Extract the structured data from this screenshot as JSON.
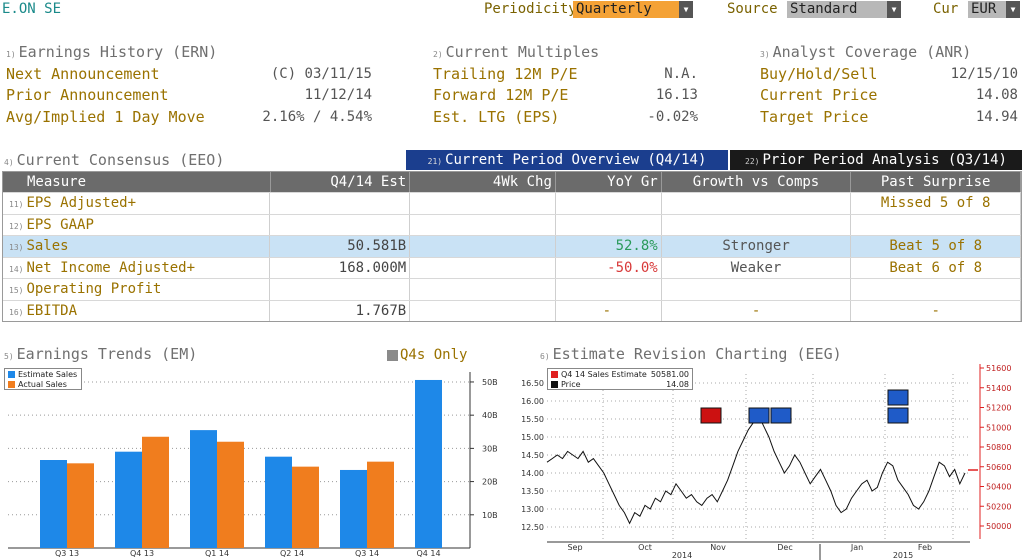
{
  "header": {
    "ticker": "E.ON SE",
    "periodicity_label": "Periodicity",
    "periodicity_value": "Quarterly",
    "source_label": "Source",
    "source_value": "Standard",
    "cur_label": "Cur",
    "cur_value": "EUR"
  },
  "earnings_history": {
    "num": "1)",
    "title": "Earnings History (ERN)",
    "rows": [
      {
        "label": "Next Announcement",
        "value": "(C)  03/11/15"
      },
      {
        "label": "Prior Announcement",
        "value": "11/12/14"
      },
      {
        "label": "Avg/Implied 1 Day Move",
        "value": "2.16% / 4.54%"
      }
    ]
  },
  "current_multiples": {
    "num": "2)",
    "title": "Current Multiples",
    "rows": [
      {
        "label": "Trailing 12M P/E",
        "value": "N.A."
      },
      {
        "label": "Forward 12M P/E",
        "value": "16.13"
      },
      {
        "label": "Est. LTG (EPS)",
        "value": "-0.02%"
      }
    ]
  },
  "analyst_coverage": {
    "num": "3)",
    "title": "Analyst Coverage (ANR)",
    "rows": [
      {
        "label": "Buy/Hold/Sell",
        "value": "12/15/10"
      },
      {
        "label": "Current Price",
        "value": "14.08"
      },
      {
        "label": "Target Price",
        "value": "14.94"
      }
    ]
  },
  "consensus": {
    "num": "4)",
    "title": "Current Consensus (EEO)",
    "tab1_num": "21)",
    "tab1": "Current Period Overview (Q4/14)",
    "tab2_num": "22)",
    "tab2": "Prior Period Analysis (Q3/14)",
    "columns": [
      "Measure",
      "Q4/14 Est",
      "4Wk Chg",
      "YoY Gr",
      "Growth vs Comps",
      "Past Surprise"
    ],
    "rows": [
      {
        "num": "11)",
        "measure": "EPS Adjusted+",
        "est": "",
        "chg": "",
        "yoy": "",
        "comps": "",
        "surprise": "Missed 5 of 8"
      },
      {
        "num": "12)",
        "measure": "EPS GAAP",
        "est": "",
        "chg": "",
        "yoy": "",
        "comps": "",
        "surprise": ""
      },
      {
        "num": "13)",
        "measure": "Sales",
        "est": "50.581B",
        "chg": "",
        "yoy": "52.8%",
        "comps": "Stronger",
        "surprise": "Beat 5 of 8"
      },
      {
        "num": "14)",
        "measure": "Net Income Adjusted+",
        "est": "168.000M",
        "chg": "",
        "yoy": "-50.0%",
        "comps": "Weaker",
        "surprise": "Beat 6 of 8"
      },
      {
        "num": "15)",
        "measure": "Operating Profit",
        "est": "",
        "chg": "",
        "yoy": "",
        "comps": "",
        "surprise": ""
      },
      {
        "num": "16)",
        "measure": "EBITDA",
        "est": "1.767B",
        "chg": "",
        "yoy": "-",
        "comps": "-",
        "surprise": "-"
      }
    ]
  },
  "earnings_trends": {
    "num": "5)",
    "title": "Earnings Trends (EM)",
    "toggle_label": "Q4s Only",
    "colors": {
      "estimate": "#1e88e8",
      "actual": "#f07d1e"
    }
  },
  "estimate_revision": {
    "num": "6)",
    "title": "Estimate Revision Charting (EEG)",
    "colors": {
      "estimate": "#e02020",
      "price": "#111111"
    }
  },
  "chart_data": [
    {
      "type": "bar",
      "categories": [
        "Q3 13",
        "Q4 13",
        "Q1 14",
        "Q2 14",
        "Q3 14",
        "Q4 14"
      ],
      "series": [
        {
          "name": "Estimate Sales",
          "values": [
            26.5,
            29.0,
            35.5,
            27.5,
            23.5,
            50.6
          ]
        },
        {
          "name": "Actual Sales",
          "values": [
            25.5,
            33.5,
            32.0,
            24.5,
            26.0,
            null
          ]
        }
      ],
      "yticks": [
        "10B",
        "20B",
        "30B",
        "40B",
        "50B"
      ],
      "ylim": [
        0,
        53
      ],
      "legend": "top-left"
    },
    {
      "type": "line",
      "x_labels": [
        "Sep",
        "Oct",
        "Nov",
        "Dec",
        "Jan",
        "Feb"
      ],
      "year_labels": [
        "2014",
        "2015"
      ],
      "series": [
        {
          "name": "Price",
          "value_label": "14.08",
          "values": [
            14.3,
            14.4,
            14.5,
            14.4,
            14.6,
            14.5,
            14.4,
            14.6,
            14.3,
            14.4,
            14.2,
            14.0,
            13.7,
            13.4,
            13.1,
            12.9,
            12.6,
            12.9,
            12.8,
            13.1,
            13.0,
            13.3,
            13.2,
            13.5,
            13.4,
            13.7,
            13.5,
            13.3,
            13.4,
            13.2,
            13.1,
            13.3,
            13.4,
            13.2,
            13.5,
            13.8,
            14.2,
            14.6,
            14.9,
            15.2,
            15.4,
            15.6,
            15.3,
            15.0,
            14.6,
            14.3,
            14.0,
            14.2,
            14.5,
            14.3,
            14.0,
            13.7,
            13.9,
            14.1,
            13.8,
            13.5,
            13.1,
            12.9,
            13.0,
            13.3,
            13.5,
            13.7,
            13.8,
            13.5,
            13.6,
            14.0,
            14.3,
            14.2,
            13.8,
            13.6,
            13.4,
            13.1,
            13.0,
            13.2,
            13.5,
            13.9,
            14.3,
            14.2,
            13.9,
            14.1,
            13.7,
            14.0
          ]
        },
        {
          "name": "Q4 14 Sales Estimate",
          "value_label": "50581.00"
        }
      ],
      "left_axis": [
        "12.50",
        "13.00",
        "13.50",
        "14.00",
        "14.50",
        "15.00",
        "15.50",
        "16.00",
        "16.50"
      ],
      "right_axis": [
        "50000",
        "50200",
        "50400",
        "50600",
        "50800",
        "51000",
        "51200",
        "51400",
        "51600"
      ],
      "legend": "top-left"
    }
  ]
}
